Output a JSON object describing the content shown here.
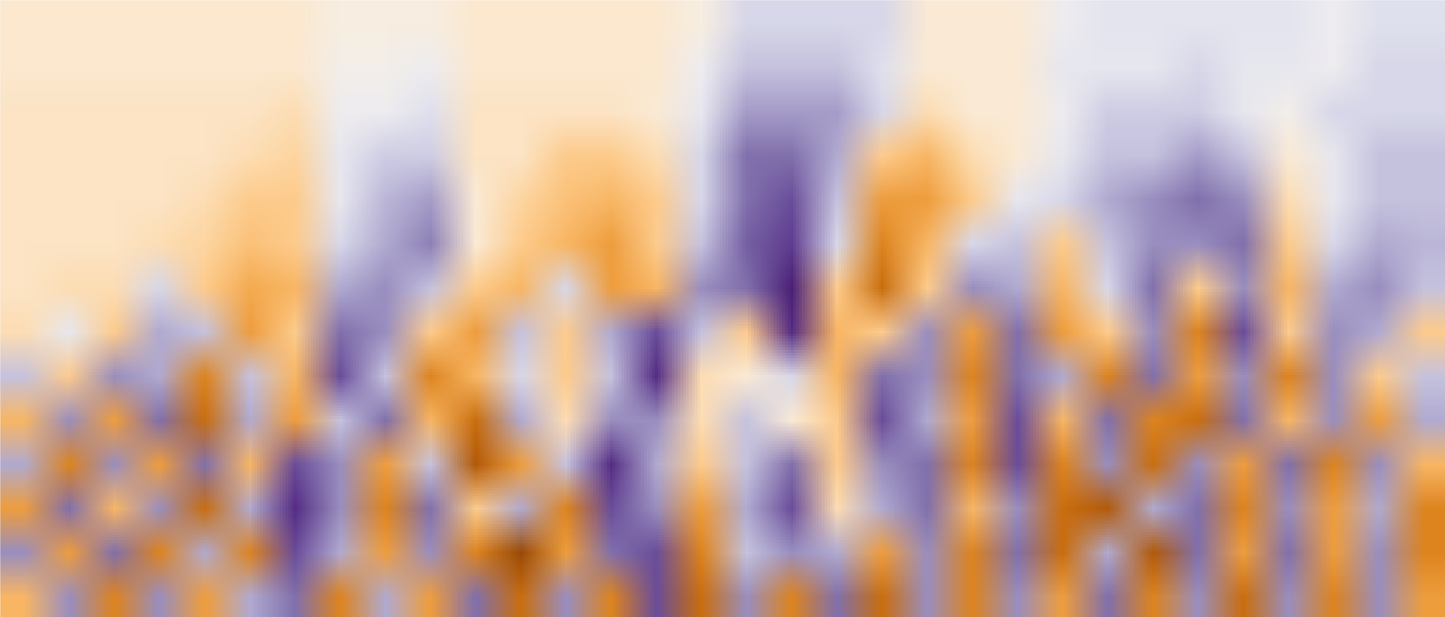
{
  "chart_data": {
    "type": "heatmap",
    "tick_labels": false,
    "color": "PuOr_r",
    "zlim": [
      -1,
      1
    ],
    "cells": [
      [
        -0.12,
        -0.12,
        -0.12,
        -0.12,
        -0.12,
        -0.12,
        -0.12,
        -0.05,
        -0.05,
        -0.05,
        -0.12,
        -0.12,
        -0.12,
        -0.12,
        -0.12,
        -0.05,
        0.2,
        0.2,
        0.2,
        0.2,
        -0.1,
        -0.1,
        -0.1,
        0.05,
        0.12,
        0.12,
        0.12,
        0.12,
        0.12,
        0.05,
        0.15,
        0.15
      ],
      [
        -0.12,
        -0.12,
        -0.12,
        -0.12,
        -0.12,
        -0.12,
        -0.12,
        0.0,
        0.0,
        0.05,
        -0.12,
        -0.12,
        -0.12,
        -0.12,
        -0.12,
        0.05,
        0.3,
        0.3,
        0.3,
        0.15,
        -0.1,
        -0.1,
        -0.1,
        0.1,
        0.1,
        0.1,
        0.2,
        0.1,
        0.1,
        0.05,
        0.2,
        0.2
      ],
      [
        -0.15,
        -0.15,
        -0.15,
        -0.15,
        -0.15,
        -0.15,
        -0.2,
        0.05,
        0.05,
        0.15,
        -0.15,
        -0.15,
        -0.15,
        -0.15,
        -0.1,
        0.1,
        0.45,
        0.45,
        0.45,
        0.2,
        -0.2,
        -0.1,
        -0.1,
        0.05,
        0.25,
        0.25,
        0.25,
        0.1,
        0.0,
        0.2,
        0.2,
        0.2
      ],
      [
        -0.15,
        -0.15,
        -0.15,
        -0.15,
        -0.15,
        -0.2,
        -0.25,
        0.1,
        0.25,
        0.25,
        -0.15,
        -0.15,
        -0.3,
        -0.3,
        -0.2,
        0.2,
        0.6,
        0.6,
        0.4,
        -0.3,
        -0.4,
        -0.2,
        -0.1,
        0.1,
        0.3,
        0.3,
        0.45,
        0.3,
        -0.1,
        0.1,
        0.3,
        0.3
      ],
      [
        -0.15,
        -0.15,
        -0.15,
        -0.15,
        -0.2,
        -0.3,
        -0.3,
        0.1,
        0.35,
        0.45,
        -0.1,
        -0.25,
        -0.35,
        -0.4,
        -0.3,
        0.2,
        0.6,
        0.7,
        0.3,
        -0.5,
        -0.5,
        -0.3,
        0.1,
        0.2,
        0.4,
        0.5,
        0.6,
        0.5,
        -0.2,
        0.1,
        0.3,
        0.3
      ],
      [
        -0.15,
        -0.15,
        -0.15,
        -0.2,
        -0.25,
        -0.35,
        -0.3,
        0.2,
        0.4,
        0.55,
        -0.1,
        -0.3,
        -0.4,
        -0.5,
        -0.3,
        0.3,
        0.65,
        0.75,
        0.2,
        -0.6,
        -0.4,
        0.2,
        0.3,
        -0.3,
        0.3,
        0.5,
        0.5,
        0.6,
        -0.3,
        0.2,
        0.4,
        0.35
      ],
      [
        -0.15,
        -0.2,
        -0.2,
        0.2,
        -0.3,
        -0.45,
        -0.4,
        0.4,
        0.5,
        0.3,
        -0.3,
        -0.4,
        0.2,
        -0.5,
        -0.4,
        0.5,
        0.6,
        0.85,
        -0.3,
        -0.7,
        -0.3,
        0.5,
        0.4,
        -0.4,
        0.2,
        0.6,
        -0.3,
        0.5,
        -0.4,
        0.4,
        0.5,
        0.3
      ],
      [
        -0.2,
        0.1,
        -0.3,
        0.4,
        0.3,
        -0.5,
        -0.3,
        0.6,
        0.5,
        -0.3,
        -0.5,
        0.3,
        -0.3,
        0.4,
        0.7,
        0.3,
        -0.3,
        0.8,
        -0.4,
        -0.3,
        0.5,
        -0.5,
        0.6,
        -0.5,
        -0.3,
        0.5,
        -0.6,
        0.7,
        -0.3,
        0.5,
        0.4,
        -0.3
      ],
      [
        0.3,
        -0.3,
        0.5,
        0.4,
        -0.6,
        0.3,
        -0.4,
        0.7,
        0.3,
        -0.6,
        -0.4,
        0.2,
        -0.3,
        0.3,
        0.8,
        -0.2,
        -0.1,
        0.2,
        -0.4,
        0.6,
        0.5,
        -0.6,
        0.6,
        0.4,
        -0.6,
        0.6,
        -0.5,
        0.5,
        -0.6,
        0.5,
        -0.3,
        0.3
      ],
      [
        -0.4,
        0.5,
        -0.5,
        0.6,
        -0.7,
        0.4,
        -0.5,
        0.3,
        0.6,
        -0.4,
        -0.7,
        0.4,
        -0.2,
        0.5,
        0.5,
        -0.2,
        0.3,
        -0.1,
        -0.3,
        0.7,
        0.4,
        -0.5,
        0.7,
        -0.4,
        0.6,
        -0.6,
        -0.7,
        0.6,
        -0.4,
        0.5,
        -0.5,
        0.4
      ],
      [
        0.4,
        -0.6,
        0.5,
        -0.5,
        0.6,
        -0.4,
        0.7,
        0.5,
        -0.5,
        0.3,
        -0.8,
        -0.5,
        0.3,
        0.8,
        0.4,
        -0.3,
        0.3,
        0.6,
        -0.3,
        0.5,
        0.6,
        -0.6,
        0.7,
        -0.6,
        0.5,
        -0.7,
        0.5,
        -0.5,
        0.6,
        -0.6,
        0.5,
        -0.4
      ],
      [
        -0.5,
        0.6,
        -0.4,
        0.5,
        -0.7,
        0.4,
        0.8,
        0.5,
        -0.6,
        0.6,
        -0.3,
        0.4,
        -0.6,
        0.7,
        0.5,
        -0.5,
        0.4,
        0.7,
        -0.2,
        0.4,
        0.6,
        -0.4,
        0.5,
        -0.7,
        -0.8,
        0.4,
        0.6,
        -0.6,
        0.5,
        -0.5,
        0.4,
        -0.6
      ],
      [
        0.5,
        -0.5,
        0.6,
        -0.6,
        0.4,
        -0.6,
        0.7,
        0.4,
        -0.5,
        0.5,
        -0.6,
        -0.9,
        -0.5,
        0.6,
        0.7,
        -0.6,
        0.3,
        0.5,
        0.4,
        -0.5,
        0.5,
        -0.6,
        0.6,
        -0.7,
        0.4,
        -0.8,
        0.6,
        -0.5,
        0.6,
        -0.5,
        0.5,
        -0.6
      ],
      [
        -0.4,
        0.5,
        -0.6,
        0.5,
        -0.5,
        0.4,
        0.6,
        -0.6,
        0.4,
        -0.5,
        0.6,
        -0.7,
        0.5,
        -0.6,
        0.7,
        -0.7,
        0.5,
        -0.6,
        0.6,
        -0.7,
        0.5,
        -0.6,
        0.5,
        -0.5,
        0.6,
        -0.6,
        0.5,
        -0.7,
        0.5,
        -0.6,
        0.5,
        -0.5
      ]
    ]
  }
}
